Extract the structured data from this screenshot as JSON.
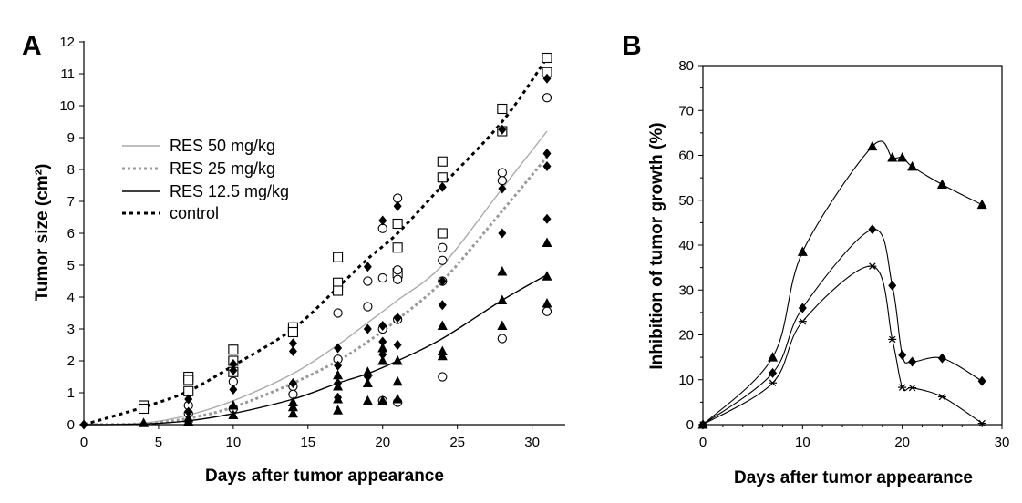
{
  "chart_data": [
    {
      "panel_label": "A",
      "type": "scatter",
      "xlabel": "Days after tumor appearance",
      "ylabel": "Tumor size (cm²)",
      "xlim": [
        0,
        31.5
      ],
      "ylim": [
        0,
        12
      ],
      "xticks": [
        "0",
        "5",
        "10",
        "15",
        "20",
        "25",
        "30"
      ],
      "yticks": [
        "0",
        "1",
        "2",
        "3",
        "4",
        "5",
        "6",
        "7",
        "8",
        "9",
        "10",
        "11",
        "12"
      ],
      "grid": false,
      "legend_position": "upper-left",
      "lines": [
        {
          "name": "RES 50 mg/kg",
          "style": "solid",
          "color": "#aaaaaa",
          "x": [
            0,
            4,
            7,
            10,
            14,
            17,
            19,
            21,
            24,
            28,
            31
          ],
          "y": [
            0,
            0.05,
            0.3,
            0.75,
            1.6,
            2.5,
            3.2,
            3.9,
            5.0,
            7.4,
            9.2
          ]
        },
        {
          "name": "RES 25 mg/kg",
          "style": "dotted",
          "color": "#999999",
          "x": [
            0,
            4,
            7,
            10,
            14,
            17,
            19,
            21,
            24,
            28,
            31
          ],
          "y": [
            0,
            0.03,
            0.2,
            0.55,
            1.3,
            2.0,
            2.6,
            3.3,
            4.5,
            6.7,
            8.4
          ]
        },
        {
          "name": "RES 12.5 mg/kg",
          "style": "solid",
          "color": "#000000",
          "x": [
            0,
            4,
            7,
            10,
            14,
            17,
            19,
            21,
            24,
            28,
            31
          ],
          "y": [
            0,
            0.02,
            0.12,
            0.35,
            0.8,
            1.3,
            1.6,
            2.0,
            2.7,
            3.9,
            4.7
          ]
        },
        {
          "name": "control",
          "style": "dashed",
          "color": "#000000",
          "x": [
            0,
            4,
            7,
            10,
            14,
            17,
            19,
            21,
            24,
            28,
            31
          ],
          "y": [
            0,
            0.55,
            1.05,
            1.85,
            3.0,
            4.3,
            5.2,
            6.0,
            7.5,
            9.5,
            11.5
          ]
        }
      ],
      "points": {
        "open_square": {
          "x": [
            4,
            4,
            7,
            7,
            7,
            10,
            10,
            10,
            14,
            14,
            17,
            17,
            17,
            21,
            21,
            21,
            24,
            24,
            24,
            28,
            28,
            31,
            31
          ],
          "y": [
            0.6,
            0.5,
            1.5,
            1.4,
            1.05,
            2.35,
            2.0,
            1.65,
            3.05,
            2.9,
            5.25,
            4.45,
            4.2,
            6.3,
            5.55,
            4.75,
            8.25,
            7.75,
            6.0,
            9.9,
            9.2,
            11.5,
            11.05
          ]
        },
        "open_circle": {
          "x": [
            7,
            7,
            10,
            10,
            14,
            14,
            17,
            17,
            19,
            19,
            20,
            20,
            20,
            20,
            21,
            21,
            21,
            21,
            21,
            24,
            24,
            24,
            24,
            28,
            28,
            28,
            31,
            31
          ],
          "y": [
            0.6,
            0.35,
            1.35,
            0.5,
            1.2,
            0.95,
            3.5,
            2.05,
            4.5,
            3.7,
            6.15,
            4.6,
            3.0,
            0.75,
            7.1,
            4.85,
            4.55,
            3.3,
            0.7,
            5.55,
            5.15,
            4.5,
            1.5,
            7.9,
            7.65,
            2.7,
            10.25,
            3.55
          ]
        },
        "filled_diamond": {
          "x": [
            0,
            7,
            7,
            10,
            10,
            10,
            14,
            14,
            14,
            17,
            17,
            17,
            17,
            19,
            19,
            19,
            20,
            20,
            20,
            20,
            21,
            21,
            21,
            24,
            24,
            24,
            28,
            28,
            28,
            31,
            31,
            31,
            31
          ],
          "y": [
            0,
            0.8,
            0.4,
            1.9,
            1.7,
            1.1,
            2.55,
            2.3,
            1.3,
            2.4,
            1.85,
            1.3,
            0.85,
            4.95,
            3.0,
            1.5,
            6.4,
            3.1,
            2.6,
            2.2,
            6.85,
            3.35,
            2.5,
            7.45,
            4.5,
            3.75,
            9.25,
            7.4,
            6.0,
            10.85,
            8.5,
            8.1,
            6.45
          ]
        },
        "filled_triangle": {
          "x": [
            4,
            7,
            7,
            10,
            10,
            14,
            14,
            14,
            17,
            17,
            17,
            17,
            19,
            19,
            19,
            20,
            20,
            20,
            21,
            21,
            21,
            24,
            24,
            24,
            28,
            28,
            28,
            31,
            31,
            31
          ],
          "y": [
            0.05,
            0.2,
            0.1,
            0.6,
            0.3,
            0.7,
            0.55,
            0.35,
            1.55,
            1.2,
            0.8,
            0.45,
            1.65,
            1.3,
            0.75,
            2.4,
            2.0,
            0.75,
            2.0,
            1.35,
            0.8,
            3.1,
            2.3,
            2.15,
            4.8,
            3.9,
            3.1,
            5.7,
            4.65,
            3.8
          ]
        }
      }
    },
    {
      "panel_label": "B",
      "type": "line",
      "xlabel": "Days after tumor appearance",
      "ylabel": "Inhibition of tumor growth (%)",
      "xlim": [
        0,
        30
      ],
      "ylim": [
        0,
        80
      ],
      "xticks": [
        "0",
        "10",
        "20",
        "30"
      ],
      "yticks": [
        "0",
        "10",
        "20",
        "30",
        "40",
        "50",
        "60",
        "70",
        "80"
      ],
      "grid": false,
      "series": [
        {
          "marker": "triangle",
          "x": [
            0,
            7,
            10,
            17,
            19,
            20,
            21,
            24,
            28
          ],
          "y": [
            0,
            15,
            38.5,
            62,
            59.5,
            59.5,
            57.5,
            53.5,
            49
          ]
        },
        {
          "marker": "diamond",
          "x": [
            0,
            7,
            10,
            17,
            19,
            20,
            21,
            24,
            28
          ],
          "y": [
            0,
            11.5,
            26,
            43.5,
            31,
            15.5,
            14,
            14.8,
            9.7
          ]
        },
        {
          "marker": "star",
          "x": [
            0,
            7,
            10,
            17,
            19,
            20,
            21,
            24,
            28
          ],
          "y": [
            0,
            9.3,
            23,
            35.3,
            19,
            8.3,
            8.2,
            6.2,
            0.3
          ]
        }
      ]
    }
  ]
}
